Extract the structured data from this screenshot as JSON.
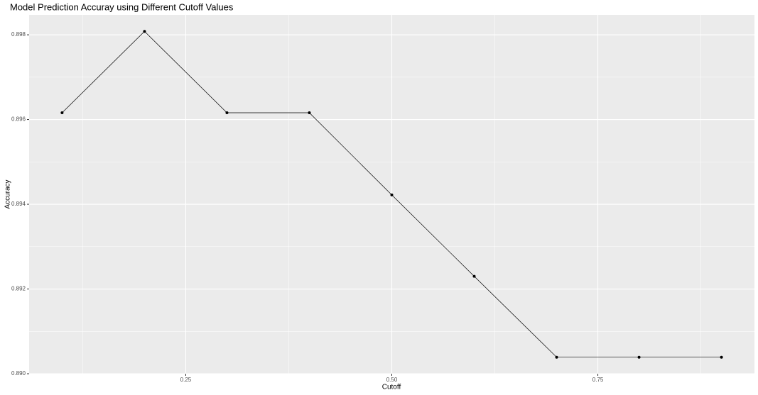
{
  "chart_data": {
    "type": "line",
    "title": "Model Prediction Accuray using Different Cutoff Values",
    "x_label": "Cutoff",
    "y_label": "Accuracy",
    "x": [
      0.1,
      0.2,
      0.3,
      0.4,
      0.5,
      0.6,
      0.7,
      0.8,
      0.9
    ],
    "series": [
      {
        "name": "Accuracy",
        "color": "#000000",
        "values": [
          0.89616,
          0.89808,
          0.89616,
          0.89616,
          0.89422,
          0.8923,
          0.89039,
          0.89039,
          0.89039
        ]
      }
    ],
    "xlim": [
      0.06,
      0.94
    ],
    "ylim": [
      0.89,
      0.89847
    ],
    "xticks": [
      0.25,
      {
        "value": 0.5,
        "label": "0.50"
      },
      0.75
    ],
    "yticks": [
      {
        "value": 0.89,
        "label": "0.890"
      },
      0.892,
      0.894,
      0.896,
      0.898
    ],
    "x_minor_ticks": [
      0.125,
      0.375,
      0.625,
      0.875
    ],
    "y_minor_ticks": [
      0.891,
      0.893,
      0.895,
      0.897
    ],
    "grid": true
  }
}
